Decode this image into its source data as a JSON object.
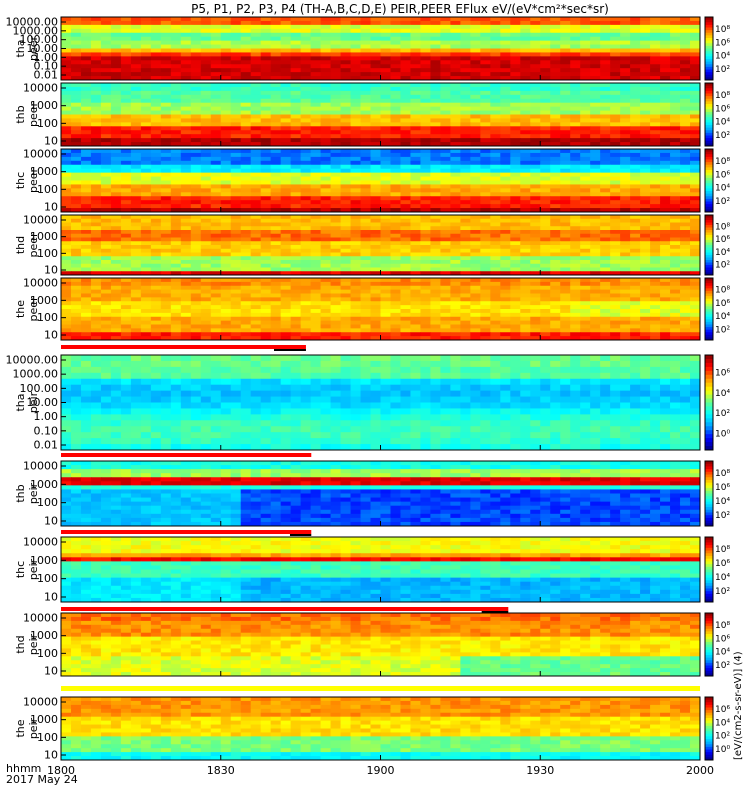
{
  "title": "P5, P1, P2, P3, P4 (TH-A,B,C,D,E) PEIR,PEER EFlux eV/(eV*cm²*sec*sr)",
  "time_axis": {
    "label_line1": "hhmm",
    "label_line2": "2017 May 24",
    "ticks": [
      "1800",
      "1830",
      "1900",
      "1930",
      "2000"
    ]
  },
  "colorbar_label": "[eV/(cm2-s-sr-eV)] (4)",
  "colors": {
    "jet": [
      "#000080",
      "#0000ff",
      "#00a0ff",
      "#00ffff",
      "#60ff90",
      "#ffff00",
      "#ff9000",
      "#ff0000",
      "#800000"
    ],
    "status_red": "#ff0000",
    "status_yellow": "#ffff00",
    "ephem_black": "#000000"
  },
  "chart_data": {
    "type": "heatmap",
    "x_range": [
      1800,
      2000
    ],
    "x_unit": "hhmm",
    "panels": [
      {
        "id": "tha-peer",
        "probe": "tha",
        "instrument": "peer",
        "ylabels": [
          "10000.00",
          "1000.00",
          "100.00",
          "10.00",
          "1.00",
          "0.10",
          "0.01"
        ],
        "y_log_range": [
          0.01,
          20000
        ],
        "cbar_ticks": [
          "10⁸",
          "10⁶",
          "10⁴",
          "10²"
        ],
        "status_bar": "none",
        "profile": "tha_peer"
      },
      {
        "id": "thb-peer",
        "probe": "thb",
        "instrument": "peer",
        "ylabels": [
          "10000",
          "1000",
          "100",
          "10"
        ],
        "y_log_range": [
          10,
          20000
        ],
        "cbar_ticks": [
          "10⁸",
          "10⁶",
          "10⁴",
          "10²"
        ],
        "status_bar": "none",
        "profile": "thb_peer"
      },
      {
        "id": "thc-peer",
        "probe": "thc",
        "instrument": "peer",
        "ylabels": [
          "10000",
          "1000",
          "100",
          "10"
        ],
        "y_log_range": [
          10,
          20000
        ],
        "cbar_ticks": [
          "10⁸",
          "10⁶",
          "10⁴",
          "10²"
        ],
        "status_bar": "none",
        "profile": "thc_peer"
      },
      {
        "id": "thd-peer",
        "probe": "thd",
        "instrument": "peer",
        "ylabels": [
          "10000",
          "1000",
          "100",
          "10"
        ],
        "y_log_range": [
          10,
          20000
        ],
        "cbar_ticks": [
          "10⁸",
          "10⁶",
          "10⁴",
          "10²"
        ],
        "status_bar": "none",
        "profile": "thd_peer"
      },
      {
        "id": "the-peer",
        "probe": "the",
        "instrument": "peer",
        "ylabels": [
          "10000",
          "1000",
          "100",
          "10"
        ],
        "y_log_range": [
          10,
          20000
        ],
        "cbar_ticks": [
          "10⁸",
          "10⁶",
          "10⁴",
          "10²"
        ],
        "status_bar": "none",
        "profile": "the_peer"
      },
      {
        "id": "tha-peir",
        "probe": "tha",
        "instrument": "peir",
        "ylabels": [
          "10000.00",
          "1000.00",
          "100.00",
          "10.00",
          "1.00",
          "0.10",
          "0.01"
        ],
        "y_log_range": [
          0.01,
          20000
        ],
        "cbar_ticks": [
          "10⁶",
          "10⁴",
          "10²",
          "10⁰"
        ],
        "status_bar": {
          "red_until": 1846,
          "black_from": 1840,
          "black_until": 1846
        },
        "profile": "tha_peir"
      },
      {
        "id": "thb-peir",
        "probe": "thb",
        "instrument": "peir",
        "ylabels": [
          "10000",
          "1000",
          "100",
          "10"
        ],
        "y_log_range": [
          10,
          20000
        ],
        "cbar_ticks": [
          "10⁸",
          "10⁶",
          "10⁴",
          "10²"
        ],
        "status_bar": {
          "red_until": 1847,
          "black_from": 0,
          "black_until": 0
        },
        "profile": "thb_peir"
      },
      {
        "id": "thc-peir",
        "probe": "thc",
        "instrument": "peir",
        "ylabels": [
          "10000",
          "1000",
          "100",
          "10"
        ],
        "y_log_range": [
          10,
          20000
        ],
        "cbar_ticks": [
          "10⁸",
          "10⁶",
          "10⁴",
          "10²"
        ],
        "status_bar": {
          "red_until": 1847,
          "black_from": 1843,
          "black_until": 1847
        },
        "profile": "thc_peir"
      },
      {
        "id": "thd-peir",
        "probe": "thd",
        "instrument": "peir",
        "ylabels": [
          "10000",
          "1000",
          "100",
          "10"
        ],
        "y_log_range": [
          10,
          20000
        ],
        "cbar_ticks": [
          "10⁸",
          "10⁶",
          "10⁴",
          "10²"
        ],
        "status_bar": {
          "red_until": 1924,
          "black_from": 1919,
          "black_until": 1924
        },
        "profile": "thd_peir"
      },
      {
        "id": "the-peir",
        "probe": "the",
        "instrument": "peir",
        "ylabels": [
          "10000",
          "1000",
          "100",
          "10"
        ],
        "y_log_range": [
          10,
          20000
        ],
        "cbar_ticks": [
          "10⁶",
          "10⁴",
          "10²",
          "10⁰"
        ],
        "status_bar": {
          "yellow_full": true
        },
        "profile": "the_peir"
      }
    ]
  }
}
